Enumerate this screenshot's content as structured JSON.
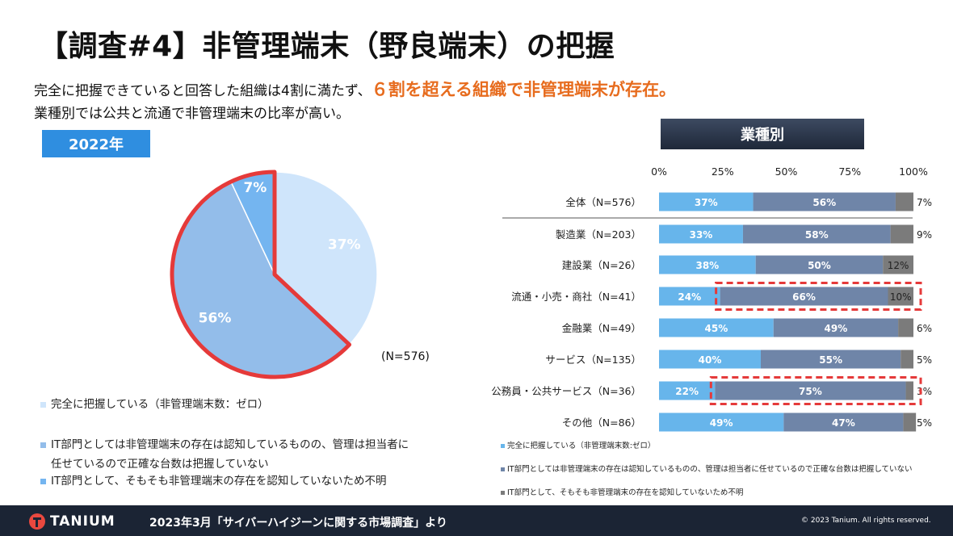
{
  "slide": {
    "title": "【調査#4】非管理端末（野良端末）の把握",
    "subtitle_line1_prefix": "完全に把握できていると回答した組織は4割に満たず、",
    "subtitle_line1_highlight": "６割を超える組織で非管理端末が存在。",
    "subtitle_line2": "業種別では公共と流通で非管理端末の比率が高い。",
    "year_badge": "2022年",
    "industry_badge": "業種別"
  },
  "colors": {
    "full": "#67b5eb",
    "partial": "#6f85a8",
    "unknown": "#7b7b7b",
    "pie_full": "#cfe5fb",
    "pie_partial": "#93bdea",
    "pie_unknown": "#74b5f0",
    "highlight": "#e53a3a",
    "accent": "#e76c1e"
  },
  "chart_data": [
    {
      "type": "pie",
      "n_label": "(N=576)",
      "slices": [
        {
          "label": "37%",
          "value": 37
        },
        {
          "label": "56%",
          "value": 56
        },
        {
          "label": "7%",
          "value": 7
        }
      ],
      "legend": [
        {
          "text": "完全に把握している（非管理端末数：ゼロ）"
        },
        {
          "text": "IT部門としては非管理端末の存在は認知しているものの、管理は担当者に",
          "text2": "任せているので正確な台数は把握していない"
        },
        {
          "text": "IT部門として、そもそも非管理端末の存在を認知していないため不明"
        }
      ]
    },
    {
      "type": "bar",
      "stacked": true,
      "horizontal": true,
      "x_ticks": [
        "0%",
        "25%",
        "50%",
        "75%",
        "100%"
      ],
      "xlim": [
        0,
        100
      ],
      "categories": [
        "全体（N=576）",
        "製造業（N=203）",
        "建設業（N=26）",
        "流通・小売・商社（N=41）",
        "金融業（N=49）",
        "サービス（N=135）",
        "公務員・公共サービス（N=36）",
        "その他（N=86）"
      ],
      "series": [
        {
          "values": [
            37,
            33,
            38,
            24,
            45,
            40,
            22,
            49
          ],
          "labels": [
            "37%",
            "33%",
            "38%",
            "24%",
            "45%",
            "40%",
            "22%",
            "49%"
          ]
        },
        {
          "values": [
            56,
            58,
            50,
            66,
            49,
            55,
            75,
            47
          ],
          "labels": [
            "56%",
            "58%",
            "50%",
            "66%",
            "49%",
            "55%",
            "75%",
            "47%"
          ]
        },
        {
          "values": [
            7,
            9,
            12,
            10,
            6,
            5,
            3,
            5
          ],
          "labels": [
            "7%",
            "9%",
            "12%",
            "10%",
            "6%",
            "5%",
            "3%",
            "5%"
          ]
        }
      ],
      "highlighted_rows": [
        3,
        6
      ],
      "legend": [
        "完全に把握している（非管理端末数:ゼロ）",
        "IT部門としては非管理端末の存在は認知しているものの、管理は担当者に任せているので正確な台数は把握していない",
        "IT部門として、そもそも非管理端末の存在を認知していないため不明"
      ]
    }
  ],
  "footer": {
    "logo_text": "TANIUM",
    "source": "2023年3月「サイバーハイジーンに関する市場調査」より",
    "copyright": "© 2023 Tanium. All rights reserved."
  }
}
